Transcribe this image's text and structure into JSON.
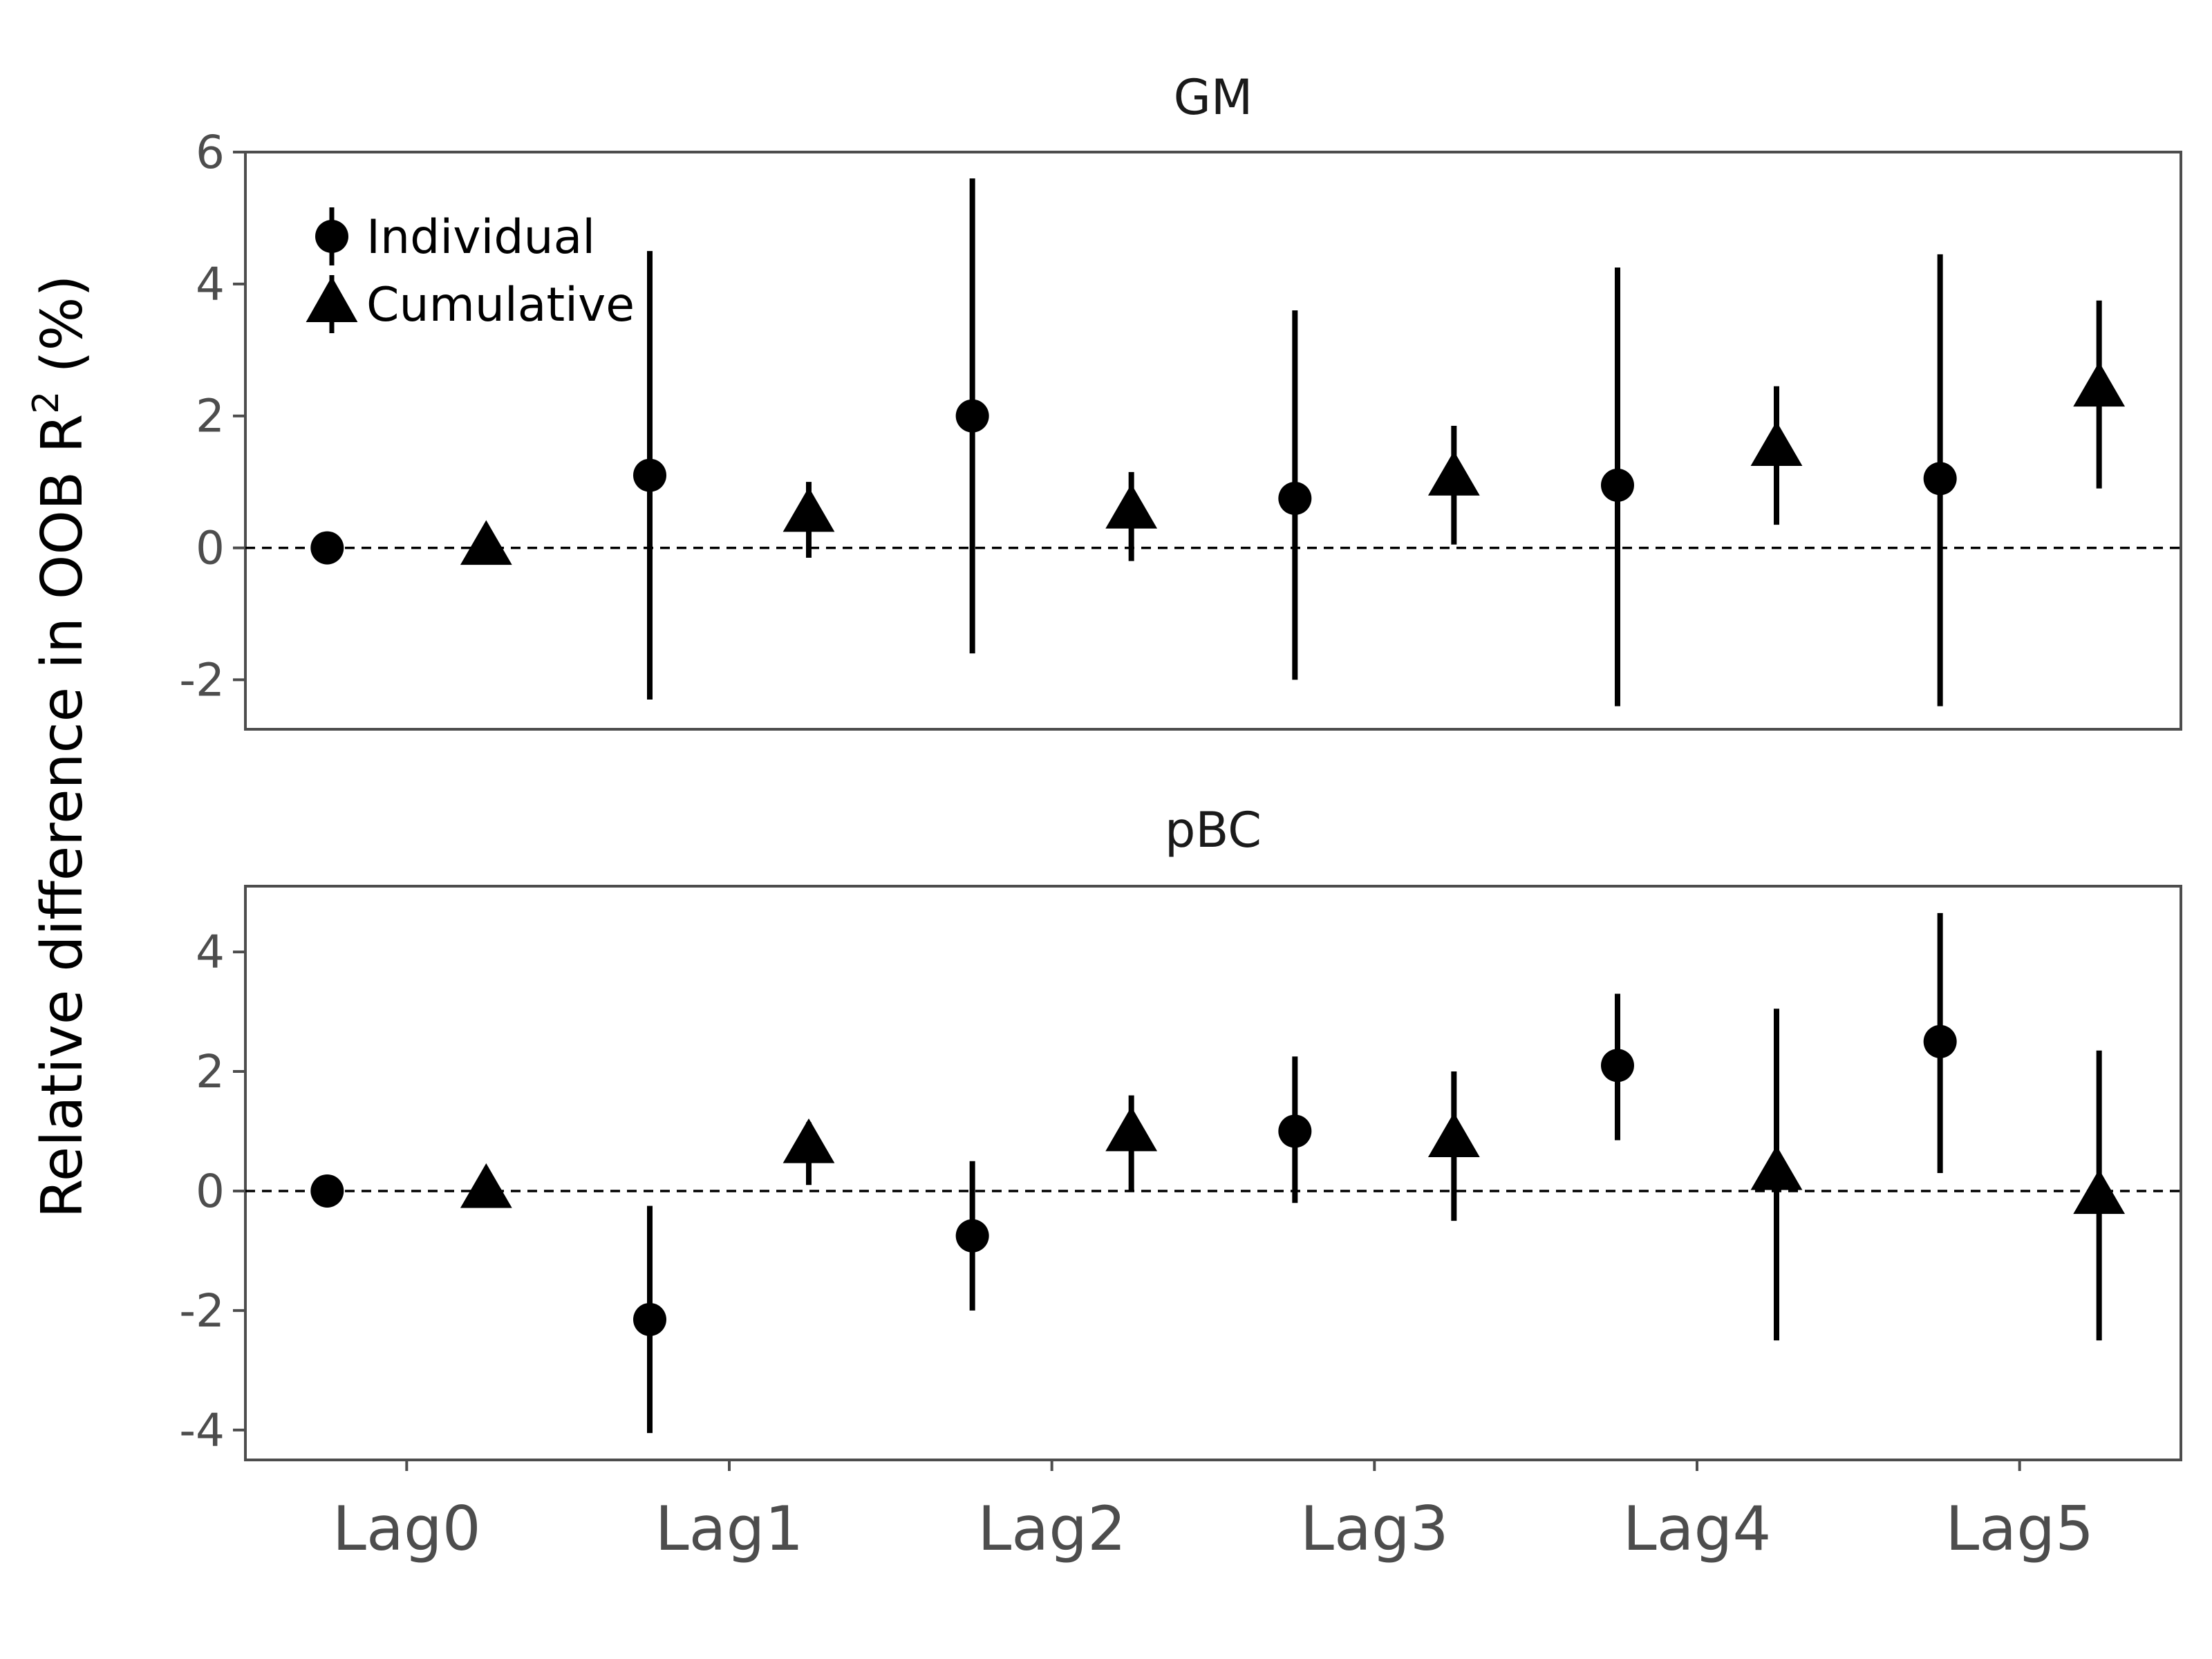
{
  "chart_data": {
    "type": "scatter",
    "ylabel": "Relative difference in OOB R",
    "ylabel_superscript": "2",
    "ylabel_suffix": " (%)",
    "categories": [
      "Lag0",
      "Lag1",
      "Lag2",
      "Lag3",
      "Lag4",
      "Lag5"
    ],
    "legend": {
      "position": "top-left",
      "entries": [
        "Individual",
        "Cumulative"
      ]
    },
    "panels": [
      {
        "title": "GM",
        "ylim": [
          -2.75,
          6
        ],
        "yticks": [
          6,
          4,
          2,
          0,
          -2
        ],
        "ytick_labels": [
          "6",
          "4",
          "2",
          "0",
          "-2"
        ],
        "reference_line": 0,
        "series": [
          {
            "name": "Individual",
            "marker": "circle",
            "points": [
              {
                "x": "Lag0",
                "y": 0,
                "lo": null,
                "hi": null
              },
              {
                "x": "Lag1",
                "y": 1.1,
                "lo": -2.3,
                "hi": 4.5
              },
              {
                "x": "Lag2",
                "y": 2.0,
                "lo": -1.6,
                "hi": 5.6
              },
              {
                "x": "Lag3",
                "y": 0.75,
                "lo": -2.0,
                "hi": 3.6
              },
              {
                "x": "Lag4",
                "y": 0.95,
                "lo": -2.4,
                "hi": 4.25
              },
              {
                "x": "Lag5",
                "y": 1.05,
                "lo": -2.4,
                "hi": 4.45
              }
            ]
          },
          {
            "name": "Cumulative",
            "marker": "triangle",
            "points": [
              {
                "x": "Lag0",
                "y": 0,
                "lo": null,
                "hi": null
              },
              {
                "x": "Lag1",
                "y": 0.5,
                "lo": -0.15,
                "hi": 1.0
              },
              {
                "x": "Lag2",
                "y": 0.55,
                "lo": -0.2,
                "hi": 1.15
              },
              {
                "x": "Lag3",
                "y": 1.05,
                "lo": 0.05,
                "hi": 1.85
              },
              {
                "x": "Lag4",
                "y": 1.5,
                "lo": 0.35,
                "hi": 2.45
              },
              {
                "x": "Lag5",
                "y": 2.4,
                "lo": 0.9,
                "hi": 3.75
              }
            ]
          }
        ]
      },
      {
        "title": "pBC",
        "ylim": [
          -4.5,
          5.1
        ],
        "yticks": [
          4,
          2,
          0,
          -2,
          -4
        ],
        "ytick_labels": [
          "4",
          "2",
          "0",
          "-2",
          "-4"
        ],
        "reference_line": 0,
        "series": [
          {
            "name": "Individual",
            "marker": "circle",
            "points": [
              {
                "x": "Lag0",
                "y": 0,
                "lo": null,
                "hi": null
              },
              {
                "x": "Lag1",
                "y": -2.15,
                "lo": -4.05,
                "hi": -0.25
              },
              {
                "x": "Lag2",
                "y": -0.75,
                "lo": -2.0,
                "hi": 0.5
              },
              {
                "x": "Lag3",
                "y": 1.0,
                "lo": -0.2,
                "hi": 2.25
              },
              {
                "x": "Lag4",
                "y": 2.1,
                "lo": 0.85,
                "hi": 3.3
              },
              {
                "x": "Lag5",
                "y": 2.5,
                "lo": 0.3,
                "hi": 4.65
              }
            ]
          },
          {
            "name": "Cumulative",
            "marker": "triangle",
            "points": [
              {
                "x": "Lag0",
                "y": 0,
                "lo": null,
                "hi": null
              },
              {
                "x": "Lag1",
                "y": 0.75,
                "lo": 0.1,
                "hi": 1.15
              },
              {
                "x": "Lag2",
                "y": 0.95,
                "lo": 0.0,
                "hi": 1.6
              },
              {
                "x": "Lag3",
                "y": 0.85,
                "lo": -0.5,
                "hi": 2.0
              },
              {
                "x": "Lag4",
                "y": 0.3,
                "lo": -2.5,
                "hi": 3.05
              },
              {
                "x": "Lag5",
                "y": -0.1,
                "lo": -2.5,
                "hi": 2.35
              }
            ]
          }
        ]
      }
    ]
  }
}
